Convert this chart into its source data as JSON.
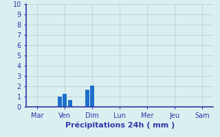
{
  "day_labels": [
    "Mar",
    "Ven",
    "Dim",
    "Lun",
    "Mer",
    "Jeu",
    "Sam"
  ],
  "day_tick_positions": [
    0,
    1,
    2,
    3,
    4,
    5,
    6
  ],
  "bar_x": [
    0.0,
    0.82,
    1.0,
    1.18,
    1.82,
    2.0,
    2.18
  ],
  "bar_values": [
    0.07,
    1.0,
    1.3,
    0.65,
    1.7,
    2.1,
    0.0
  ],
  "bar_color": "#1e6fcc",
  "bg_color": "#daf0f0",
  "grid_color": "#b8c8c8",
  "axis_color": "#3333aa",
  "text_color": "#3333aa",
  "xlabel": "Précipitations 24h ( mm )",
  "ylim": [
    0,
    10
  ],
  "yticks": [
    0,
    1,
    2,
    3,
    4,
    5,
    6,
    7,
    8,
    9,
    10
  ],
  "bar_width": 0.15,
  "xlim": [
    -0.4,
    6.4
  ],
  "xlabel_fontsize": 8,
  "tick_fontsize": 7
}
